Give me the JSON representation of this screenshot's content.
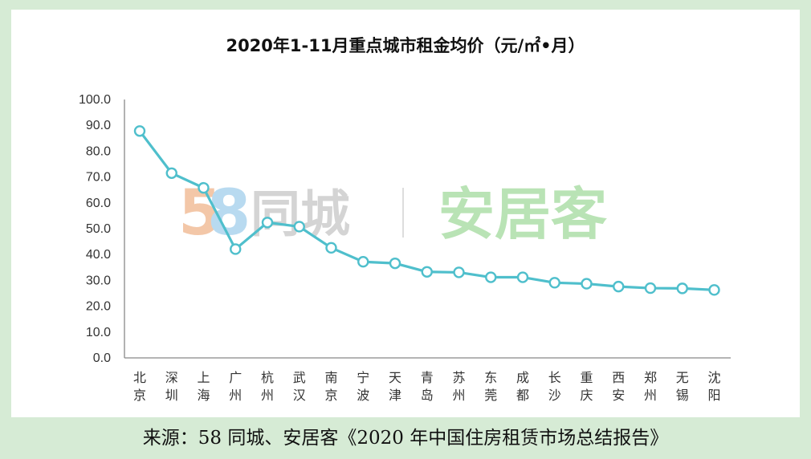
{
  "chart_data": {
    "type": "line",
    "title": "2020年1-11月重点城市租金均价（元/㎡•月）",
    "categories": [
      "北京",
      "深圳",
      "上海",
      "广州",
      "杭州",
      "武汉",
      "南京",
      "宁波",
      "天津",
      "青岛",
      "苏州",
      "东莞",
      "成都",
      "长沙",
      "重庆",
      "西安",
      "郑州",
      "无锡",
      "沈阳"
    ],
    "values": [
      87.8,
      71.5,
      65.8,
      42.1,
      52.4,
      50.8,
      42.6,
      37.2,
      36.6,
      33.3,
      33.1,
      31.2,
      31.2,
      29.1,
      28.7,
      27.6,
      27.0,
      26.9,
      26.3
    ],
    "ylim": [
      0,
      100
    ],
    "yticks": [
      "100.0",
      "90.0",
      "80.0",
      "70.0",
      "60.0",
      "50.0",
      "40.0",
      "30.0",
      "20.0",
      "10.0",
      "0.0"
    ],
    "grid": false,
    "legend": "none",
    "line_color": "#4fbfcc",
    "marker_fill": "#ffffff"
  },
  "watermark": {
    "brand_58_digits": "58",
    "brand_58_name": "同城",
    "brand_ajk": "安居客",
    "colors": {
      "digit5": "#f3c7a8",
      "digit8": "#b8daf0",
      "ajk": "#b9e3b5"
    }
  },
  "source_text": "来源：58 同城、安居客《2020 年中国住房租赁市场总结报告》"
}
